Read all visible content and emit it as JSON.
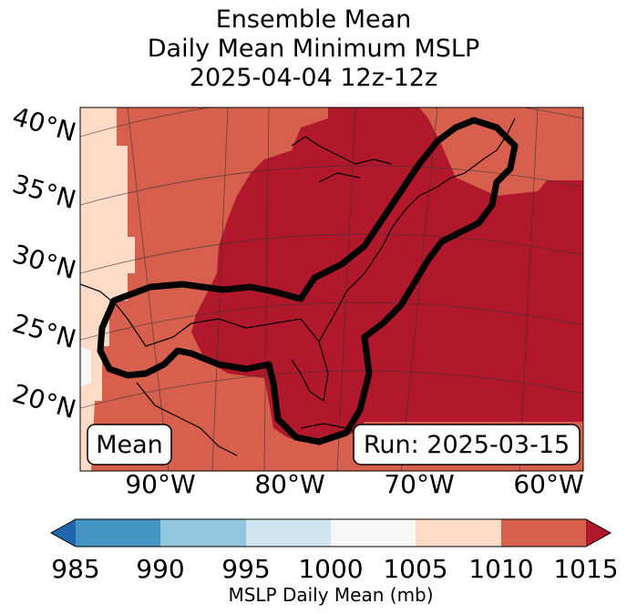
{
  "title": {
    "line1": "Ensemble Mean",
    "line2": "Daily Mean Minimum MSLP",
    "line3": "2025-04-04 12z-12z"
  },
  "map": {
    "lat_labels": [
      "40°N",
      "35°N",
      "30°N",
      "25°N",
      "20°N"
    ],
    "lon_labels": [
      "90°W",
      "80°W",
      "70°W",
      "60°W"
    ],
    "mean_label": "Mean",
    "run_label": "Run: 2025-03-15",
    "contour_icon": "contour-outline",
    "fill_colors": {
      "1005-1010": "#fddbc7",
      "1010-1015": "#d6604d",
      "over-1015": "#b2182b",
      "1000-1005": "#f7f7f7"
    }
  },
  "colorbar": {
    "ticks": [
      "985",
      "990",
      "995",
      "1000",
      "1005",
      "1010",
      "1015"
    ],
    "colors": [
      "#2166ac",
      "#4393c3",
      "#92c5de",
      "#d1e5f0",
      "#f7f7f7",
      "#fddbc7",
      "#d6604d",
      "#b2182b"
    ],
    "label": "MSLP Daily Mean (mb)"
  }
}
